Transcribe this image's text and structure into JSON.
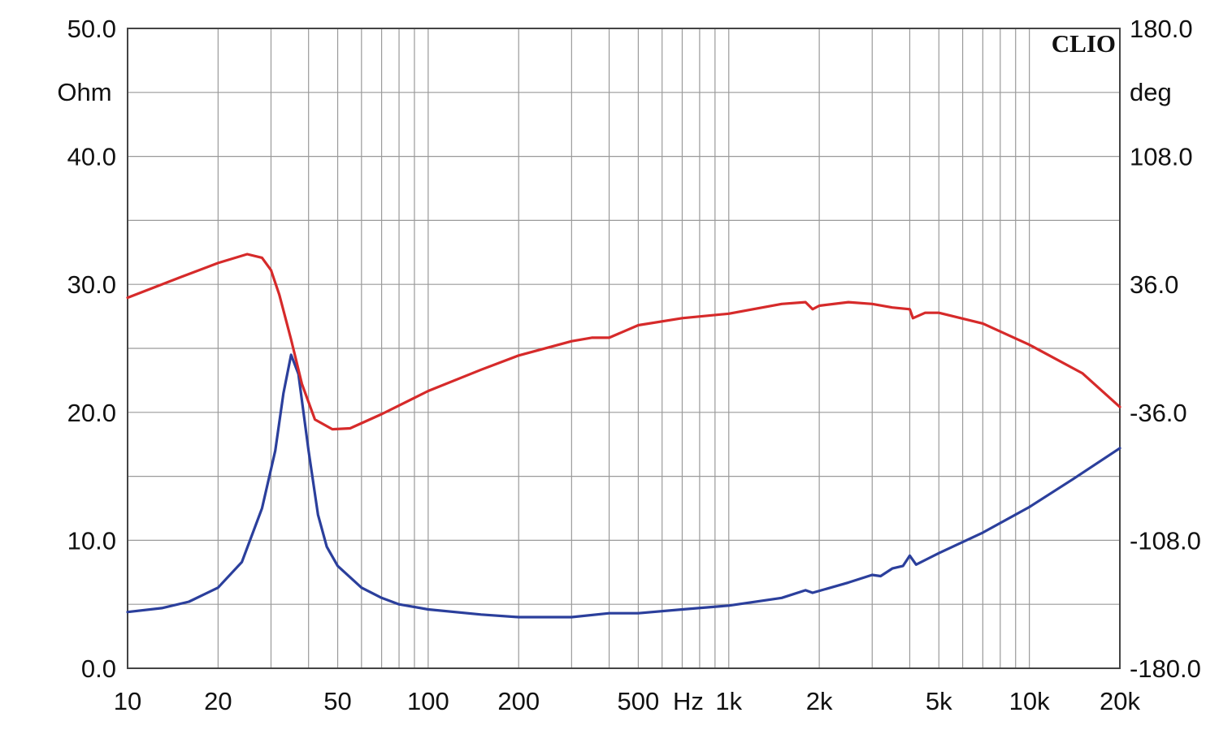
{
  "chart_data": {
    "type": "line",
    "brand": "CLIO",
    "x_scale": "log",
    "xlim": [
      10,
      20000
    ],
    "y_left": {
      "unit": "Ohm",
      "ylim": [
        0,
        50
      ],
      "ticks": [
        "0.0",
        "10.0",
        "20.0",
        "30.0",
        "40.0",
        "50.0"
      ]
    },
    "y_right": {
      "unit": "deg",
      "ylim": [
        -180,
        180
      ],
      "ticks": [
        "-180.0",
        "-108.0",
        "-36.0",
        "36.0",
        "108.0",
        "180.0"
      ]
    },
    "x_ticks": [
      {
        "value": 10,
        "label": "10"
      },
      {
        "value": 20,
        "label": "20"
      },
      {
        "value": 50,
        "label": "50"
      },
      {
        "value": 100,
        "label": "100"
      },
      {
        "value": 200,
        "label": "200"
      },
      {
        "value": 500,
        "label": "500"
      },
      {
        "value": 1000,
        "label": "1k"
      },
      {
        "value": 2000,
        "label": "2k"
      },
      {
        "value": 5000,
        "label": "5k"
      },
      {
        "value": 10000,
        "label": "10k"
      },
      {
        "value": 20000,
        "label": "20k"
      }
    ],
    "x_unit_label": "Hz",
    "grid": true,
    "series": [
      {
        "axis": "left",
        "color": "#2b3f9c",
        "points": [
          [
            10,
            4.4
          ],
          [
            13,
            4.7
          ],
          [
            16,
            5.2
          ],
          [
            20,
            6.3
          ],
          [
            24,
            8.3
          ],
          [
            28,
            12.5
          ],
          [
            31,
            17.0
          ],
          [
            33,
            21.5
          ],
          [
            35,
            24.5
          ],
          [
            37,
            23.0
          ],
          [
            40,
            17.0
          ],
          [
            43,
            12.0
          ],
          [
            46,
            9.5
          ],
          [
            50,
            8.0
          ],
          [
            60,
            6.3
          ],
          [
            70,
            5.5
          ],
          [
            80,
            5.0
          ],
          [
            100,
            4.6
          ],
          [
            150,
            4.2
          ],
          [
            200,
            4.0
          ],
          [
            300,
            4.0
          ],
          [
            400,
            4.3
          ],
          [
            500,
            4.3
          ],
          [
            700,
            4.6
          ],
          [
            1000,
            4.9
          ],
          [
            1500,
            5.5
          ],
          [
            1800,
            6.1
          ],
          [
            1900,
            5.9
          ],
          [
            2500,
            6.7
          ],
          [
            3000,
            7.3
          ],
          [
            3200,
            7.2
          ],
          [
            3500,
            7.8
          ],
          [
            3800,
            8.0
          ],
          [
            4000,
            8.8
          ],
          [
            4200,
            8.1
          ],
          [
            5000,
            9.0
          ],
          [
            7000,
            10.6
          ],
          [
            10000,
            12.6
          ],
          [
            14000,
            14.8
          ],
          [
            20000,
            17.2
          ]
        ]
      },
      {
        "axis": "right",
        "color": "#d62a2a",
        "points": [
          [
            10,
            28.5
          ],
          [
            15,
            40
          ],
          [
            20,
            48
          ],
          [
            25,
            53
          ],
          [
            28,
            51
          ],
          [
            30,
            44
          ],
          [
            32,
            30
          ],
          [
            35,
            5
          ],
          [
            38,
            -20
          ],
          [
            42,
            -40
          ],
          [
            48,
            -45.5
          ],
          [
            55,
            -45
          ],
          [
            70,
            -37
          ],
          [
            100,
            -24
          ],
          [
            150,
            -12
          ],
          [
            200,
            -4
          ],
          [
            300,
            4
          ],
          [
            350,
            6
          ],
          [
            400,
            6
          ],
          [
            500,
            13
          ],
          [
            700,
            17
          ],
          [
            1000,
            19.5
          ],
          [
            1500,
            25
          ],
          [
            1800,
            26
          ],
          [
            1900,
            22
          ],
          [
            2000,
            24
          ],
          [
            2500,
            26
          ],
          [
            3000,
            25
          ],
          [
            3500,
            23
          ],
          [
            4000,
            22
          ],
          [
            4100,
            17
          ],
          [
            4500,
            20
          ],
          [
            5000,
            20
          ],
          [
            7000,
            14
          ],
          [
            10000,
            2
          ],
          [
            15000,
            -14
          ],
          [
            20000,
            -33
          ]
        ]
      }
    ]
  }
}
